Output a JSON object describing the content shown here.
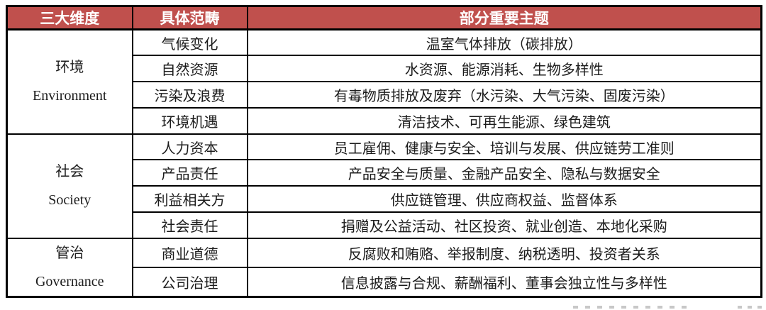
{
  "table": {
    "headers": {
      "dimension": "三大维度",
      "category": "具体范畴",
      "topics": "部分重要主题"
    },
    "header_bg_color": "#C0504D",
    "header_text_color": "#FFFFFF",
    "border_color": "#000000",
    "sections": [
      {
        "zh": "环境",
        "en": "Environment",
        "rows": [
          {
            "category": "气候变化",
            "topics": "温室气体排放（碳排放）"
          },
          {
            "category": "自然资源",
            "topics": "水资源、能源消耗、生物多样性"
          },
          {
            "category": "污染及浪费",
            "topics": "有毒物质排放及废弃（水污染、大气污染、固废污染）"
          },
          {
            "category": "环境机遇",
            "topics": "清洁技术、可再生能源、绿色建筑"
          }
        ]
      },
      {
        "zh": "社会",
        "en": "Society",
        "rows": [
          {
            "category": "人力资本",
            "topics": "员工雇佣、健康与安全、培训与发展、供应链劳工准则"
          },
          {
            "category": "产品责任",
            "topics": "产品安全与质量、金融产品安全、隐私与数据安全"
          },
          {
            "category": "利益相关方",
            "topics": "供应链管理、供应商权益、监督体系"
          },
          {
            "category": "社会责任",
            "topics": "捐赠及公益活动、社区投资、就业创造、本地化采购"
          }
        ]
      },
      {
        "zh": "管治",
        "en": "Governance",
        "rows": [
          {
            "category": "商业道德",
            "topics": "反腐败和贿赂、举报制度、纳税透明、投资者关系"
          },
          {
            "category": "公司治理",
            "topics": "信息披露与合规、薪酬福利、董事会独立性与多样性"
          }
        ]
      }
    ]
  }
}
